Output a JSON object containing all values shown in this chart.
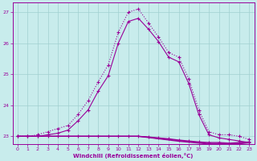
{
  "xlabel": "Windchill (Refroidissement éolien,°C)",
  "bg_color": "#c8ecec",
  "grid_color": "#a0d0d0",
  "line_color": "#990099",
  "ylim": [
    22.75,
    27.3
  ],
  "xlim": [
    -0.5,
    23.5
  ],
  "yticks": [
    23,
    24,
    25,
    26,
    27
  ],
  "xticks": [
    0,
    1,
    2,
    3,
    4,
    5,
    6,
    7,
    8,
    9,
    10,
    11,
    12,
    13,
    14,
    15,
    16,
    17,
    18,
    19,
    20,
    21,
    22,
    23
  ],
  "line_dotted_x": [
    0,
    1,
    2,
    3,
    4,
    5,
    6,
    7,
    8,
    9,
    10,
    11,
    12,
    13,
    14,
    15,
    16,
    17,
    18,
    19,
    20,
    21,
    22,
    23
  ],
  "line_dotted_y": [
    23.0,
    23.0,
    23.05,
    23.15,
    23.25,
    23.35,
    23.7,
    24.15,
    24.75,
    25.3,
    26.35,
    27.0,
    27.1,
    26.65,
    26.2,
    25.7,
    25.55,
    24.85,
    23.85,
    23.15,
    23.05,
    23.05,
    23.0,
    22.9
  ],
  "line_solid1_x": [
    0,
    1,
    2,
    3,
    4,
    5,
    6,
    7,
    8,
    9,
    10,
    11,
    12,
    13,
    14,
    15,
    16,
    17,
    18,
    19,
    20,
    21,
    22,
    23
  ],
  "line_solid1_y": [
    23.0,
    23.0,
    23.0,
    23.05,
    23.1,
    23.2,
    23.5,
    23.85,
    24.45,
    24.95,
    26.0,
    26.7,
    26.8,
    26.45,
    26.05,
    25.55,
    25.4,
    24.7,
    23.7,
    23.05,
    22.95,
    22.9,
    22.85,
    22.8
  ],
  "line_solid2_x": [
    0,
    1,
    2,
    3,
    4,
    5,
    6,
    7,
    8,
    9,
    10,
    11,
    12,
    13,
    14,
    15,
    16,
    17,
    18,
    19,
    20,
    21,
    22,
    23
  ],
  "line_solid2_y": [
    23.0,
    23.0,
    23.0,
    23.0,
    23.0,
    23.0,
    23.0,
    23.0,
    23.0,
    23.0,
    23.0,
    23.0,
    23.0,
    22.98,
    22.95,
    22.92,
    22.88,
    22.85,
    22.82,
    22.8,
    22.8,
    22.78,
    22.8,
    22.82
  ],
  "line_solid3_x": [
    0,
    1,
    2,
    3,
    4,
    5,
    6,
    7,
    8,
    9,
    10,
    11,
    12,
    13,
    14,
    15,
    16,
    17,
    18,
    19,
    20,
    21,
    22,
    23
  ],
  "line_solid3_y": [
    23.0,
    23.0,
    23.0,
    23.0,
    23.0,
    23.0,
    23.0,
    23.0,
    23.0,
    23.0,
    23.0,
    23.0,
    23.0,
    22.97,
    22.93,
    22.9,
    22.86,
    22.83,
    22.8,
    22.77,
    22.77,
    22.75,
    22.78,
    22.8
  ],
  "line_solid4_x": [
    0,
    1,
    2,
    3,
    4,
    5,
    6,
    7,
    8,
    9,
    10,
    11,
    12,
    13,
    14,
    15,
    16,
    17,
    18,
    19,
    20,
    21,
    22,
    23
  ],
  "line_solid4_y": [
    23.0,
    23.0,
    23.0,
    23.0,
    23.0,
    23.0,
    23.0,
    23.0,
    23.0,
    23.0,
    23.0,
    23.0,
    23.0,
    22.96,
    22.92,
    22.88,
    22.84,
    22.81,
    22.78,
    22.75,
    22.75,
    22.74,
    22.76,
    22.79
  ]
}
